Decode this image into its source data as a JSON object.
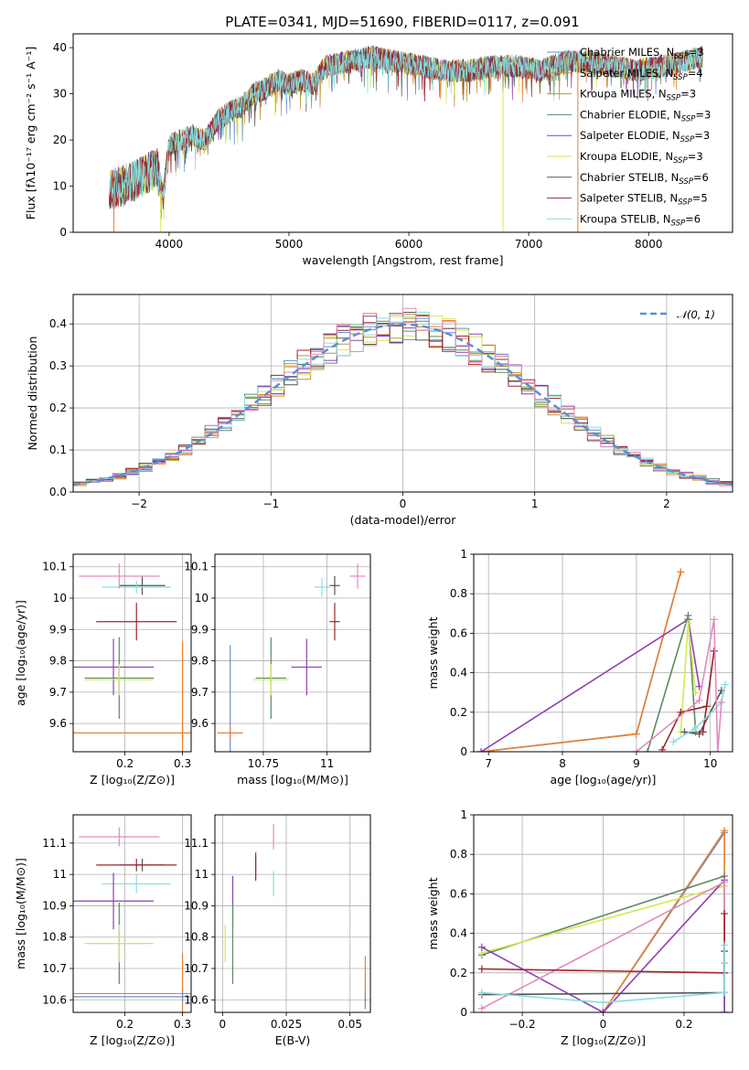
{
  "figure": {
    "title": "PLATE=0341, MJD=51690, FIBERID=0117, z=0.091"
  },
  "colors": [
    "#6a8fce",
    "#e8812f",
    "#c09339",
    "#5f8a65",
    "#8e3fb5",
    "#d5e850",
    "#555555",
    "#a0242c",
    "#88dde0",
    "#e28bbf",
    "#b8b8b8"
  ],
  "chart_data": [
    {
      "id": "spectrum",
      "type": "line",
      "title": "PLATE=0341, MJD=51690, FIBERID=0117, z=0.091",
      "xlabel": "wavelength [Angstrom, rest frame]",
      "ylabel": "Flux [fλ10⁻¹⁷ erg cm⁻² s⁻¹ A⁻¹]",
      "xlim": [
        3200,
        8700
      ],
      "ylim": [
        0,
        43
      ],
      "xticks": [
        4000,
        5000,
        6000,
        7000,
        8000
      ],
      "yticks": [
        0,
        10,
        20,
        30,
        40
      ],
      "spectrum_range": [
        3500,
        8450
      ],
      "legend_location": "right",
      "legend": [
        {
          "model": "Chabrier MILES",
          "n": "3"
        },
        {
          "model": "Salpeter MILES",
          "n": "4"
        },
        {
          "model": "Kroupa MILES",
          "n": "3"
        },
        {
          "model": "Chabrier ELODIE",
          "n": "3"
        },
        {
          "model": "Salpeter ELODIE",
          "n": "3"
        },
        {
          "model": "Kroupa ELODIE",
          "n": "3"
        },
        {
          "model": "Chabrier STELIB",
          "n": "6"
        },
        {
          "model": "Salpeter STELIB",
          "n": "5"
        },
        {
          "model": "Kroupa STELIB",
          "n": "6"
        }
      ],
      "legend_colors": [
        "#6a8fce",
        "#e8812f",
        "#c09339",
        "#5f8a65",
        "#8e3fb5",
        "#d5e850",
        "#555555",
        "#a0242c",
        "#88dde0"
      ],
      "envelope": {
        "x": [
          3500,
          3700,
          3900,
          3950,
          4000,
          4200,
          4300,
          4400,
          4500,
          4600,
          4700,
          4800,
          4900,
          5000,
          5100,
          5200,
          5300,
          5500,
          5700,
          5900,
          6100,
          6300,
          6500,
          6700,
          6900,
          7100,
          7300,
          7500,
          7700,
          7900,
          8100,
          8300,
          8450
        ],
        "y": [
          9,
          11,
          14,
          8,
          19,
          21,
          20,
          24,
          26,
          27,
          30,
          31,
          33,
          32,
          33,
          32,
          36,
          37,
          38,
          37,
          36,
          35,
          35,
          36,
          36,
          35,
          37,
          37,
          36,
          35,
          36,
          37,
          38
        ]
      }
    },
    {
      "id": "residuals",
      "type": "line",
      "xlabel": "(data-model)/error",
      "ylabel": "Normed distribution",
      "xlim": [
        -2.5,
        2.5
      ],
      "ylim": [
        0,
        0.47
      ],
      "xticks": [
        -2,
        -1,
        0,
        1,
        2
      ],
      "yticks": [
        0.0,
        0.1,
        0.2,
        0.3,
        0.4
      ],
      "legend": [
        {
          "label": "𝒩(0, 1)",
          "color": "#5b8fd6"
        }
      ],
      "legend_location": "top-right"
    },
    {
      "id": "Z-age",
      "type": "scatter",
      "xlabel": "Z [log₁₀(Z/Z⊙)]",
      "ylabel": "age  [log₁₀(age/yr)]",
      "xlim": [
        0.11,
        0.315
      ],
      "ylim": [
        9.51,
        10.14
      ],
      "xticks": [
        0.2,
        0.3
      ],
      "yticks": [
        9.6,
        9.7,
        9.8,
        9.9,
        10.0,
        10.1
      ],
      "points": [
        {
          "x": 0.23,
          "y": 10.04,
          "xerr": 0.04,
          "yerr": 0.03,
          "c": 6
        },
        {
          "x": 0.22,
          "y": 10.035,
          "xerr": 0.06,
          "yerr": 0.02,
          "c": 8
        },
        {
          "x": 0.19,
          "y": 10.07,
          "xerr": 0.07,
          "yerr": 0.04,
          "c": 9
        },
        {
          "x": 0.22,
          "y": 9.925,
          "xerr": 0.07,
          "yerr": 0.06,
          "c": 7
        },
        {
          "x": 0.18,
          "y": 9.78,
          "xerr": 0.07,
          "yerr": 0.09,
          "c": 4
        },
        {
          "x": 0.19,
          "y": 9.745,
          "xerr": 0.06,
          "yerr": 0.13,
          "c": 3
        },
        {
          "x": 0.19,
          "y": 9.74,
          "xerr": 0.06,
          "yerr": 0.05,
          "c": 5
        },
        {
          "x": 0.3,
          "y": 9.57,
          "xerr": 0.19,
          "yerr": 0.02,
          "c": 0
        },
        {
          "x": 0.3,
          "y": 9.57,
          "xerr": 0.19,
          "yerr": 0.29,
          "c": 1
        }
      ]
    },
    {
      "id": "mass-age",
      "type": "scatter",
      "xlabel": "mass [log₁₀(M/M⊙)]",
      "ylabel": "",
      "xlim": [
        10.56,
        11.17
      ],
      "ylim": [
        9.51,
        10.14
      ],
      "xticks": [
        10.75,
        11.0
      ],
      "yticks": [
        9.6,
        9.7,
        9.8,
        9.9,
        10.0,
        10.1
      ],
      "points": [
        {
          "x": 11.03,
          "y": 10.04,
          "xerr": 0.02,
          "yerr": 0.03,
          "c": 6
        },
        {
          "x": 10.98,
          "y": 10.035,
          "xerr": 0.03,
          "yerr": 0.03,
          "c": 8
        },
        {
          "x": 11.12,
          "y": 10.07,
          "xerr": 0.03,
          "yerr": 0.04,
          "c": 9
        },
        {
          "x": 11.03,
          "y": 9.925,
          "xerr": 0.02,
          "yerr": 0.06,
          "c": 7
        },
        {
          "x": 10.92,
          "y": 9.78,
          "xerr": 0.06,
          "yerr": 0.09,
          "c": 4
        },
        {
          "x": 10.78,
          "y": 9.745,
          "xerr": 0.06,
          "yerr": 0.13,
          "c": 3
        },
        {
          "x": 10.78,
          "y": 9.74,
          "xerr": 0.07,
          "yerr": 0.05,
          "c": 5
        },
        {
          "x": 10.62,
          "y": 9.57,
          "xerr": 0.05,
          "yerr": 0.28,
          "c": 0
        },
        {
          "x": 10.62,
          "y": 9.57,
          "xerr": 0.05,
          "yerr": 0.02,
          "c": 1
        }
      ]
    },
    {
      "id": "age-weight",
      "type": "line",
      "xlabel": "age  [log₁₀(age/yr)]",
      "ylabel": "mass weight",
      "xlim": [
        6.8,
        10.3
      ],
      "ylim": [
        0,
        1.0
      ],
      "xticks": [
        7,
        8,
        9,
        10
      ],
      "yticks": [
        0.0,
        0.2,
        0.4,
        0.6,
        0.8,
        1.0
      ],
      "series": [
        {
          "c": 0,
          "x": [
            6.9,
            9.0,
            9.6
          ],
          "y": [
            0.0,
            0.09,
            0.91
          ]
        },
        {
          "c": 1,
          "x": [
            6.9,
            9.0,
            9.6
          ],
          "y": [
            0.0,
            0.09,
            0.91
          ]
        },
        {
          "c": 4,
          "x": [
            6.9,
            9.7,
            9.85
          ],
          "y": [
            0.0,
            0.67,
            0.33
          ]
        },
        {
          "c": 3,
          "x": [
            9.15,
            9.7,
            9.8
          ],
          "y": [
            0.0,
            0.69,
            0.1
          ]
        },
        {
          "c": 5,
          "x": [
            9.6,
            9.7,
            9.8
          ],
          "y": [
            0.1,
            0.65,
            0.3
          ]
        },
        {
          "c": 6,
          "x": [
            9.65,
            9.85,
            10.15
          ],
          "y": [
            0.1,
            0.09,
            0.31
          ]
        },
        {
          "c": 7,
          "x": [
            9.35,
            9.6,
            9.95,
            10.05,
            9.9
          ],
          "y": [
            0.01,
            0.2,
            0.23,
            0.51,
            0.1
          ]
        },
        {
          "c": 8,
          "x": [
            9.5,
            9.8,
            10.15,
            10.2
          ],
          "y": [
            0.05,
            0.12,
            0.25,
            0.34
          ]
        },
        {
          "c": 9,
          "x": [
            9.0,
            9.85,
            10.05,
            10.1,
            10.15
          ],
          "y": [
            0.0,
            0.26,
            0.67,
            0.0,
            0.25
          ]
        }
      ]
    },
    {
      "id": "Z-mass",
      "type": "scatter",
      "xlabel": "Z [log₁₀(Z/Z⊙)]",
      "ylabel": "mass [log₁₀(M/M⊙)]",
      "xlim": [
        0.11,
        0.315
      ],
      "ylim": [
        10.56,
        11.19
      ],
      "xticks": [
        0.2,
        0.3
      ],
      "yticks": [
        10.6,
        10.7,
        10.8,
        10.9,
        11.0,
        11.1
      ],
      "points": [
        {
          "x": 0.23,
          "y": 11.03,
          "xerr": 0.04,
          "yerr": 0.02,
          "c": 6
        },
        {
          "x": 0.22,
          "y": 10.97,
          "xerr": 0.06,
          "yerr": 0.03,
          "c": 8
        },
        {
          "x": 0.19,
          "y": 11.12,
          "xerr": 0.07,
          "yerr": 0.03,
          "c": 9
        },
        {
          "x": 0.22,
          "y": 11.03,
          "xerr": 0.07,
          "yerr": 0.02,
          "c": 7
        },
        {
          "x": 0.18,
          "y": 10.915,
          "xerr": 0.07,
          "yerr": 0.09,
          "c": 4
        },
        {
          "x": 0.19,
          "y": 10.78,
          "xerr": 0.05,
          "yerr": 0.13,
          "c": 3
        },
        {
          "x": 0.19,
          "y": 10.78,
          "xerr": 0.06,
          "yerr": 0.06,
          "c": 5
        },
        {
          "x": 0.3,
          "y": 10.62,
          "xerr": 0.19,
          "yerr": 0.13,
          "c": 1
        },
        {
          "x": 0.3,
          "y": 10.61,
          "xerr": 0.19,
          "yerr": 0.02,
          "c": 0
        }
      ]
    },
    {
      "id": "EBV-mass",
      "type": "scatter",
      "xlabel": "E(B-V)",
      "ylabel": "",
      "xlim": [
        -0.003,
        0.058
      ],
      "ylim": [
        10.56,
        11.19
      ],
      "xticks": [
        0.0,
        0.025,
        0.05
      ],
      "yticks": [
        10.6,
        10.7,
        10.8,
        10.9,
        11.0,
        11.1
      ],
      "points": [
        {
          "x": 0.02,
          "y": 11.12,
          "yerr": 0.04,
          "c": 9
        },
        {
          "x": 0.013,
          "y": 11.03,
          "yerr": 0.04,
          "c": 6
        },
        {
          "x": 0.013,
          "y": 11.02,
          "yerr": 0.04,
          "c": 7
        },
        {
          "x": 0.02,
          "y": 10.97,
          "yerr": 0.04,
          "c": 8
        },
        {
          "x": 0.004,
          "y": 10.915,
          "yerr": 0.08,
          "c": 4
        },
        {
          "x": 0.004,
          "y": 10.78,
          "yerr": 0.13,
          "c": 3
        },
        {
          "x": 0.001,
          "y": 10.78,
          "yerr": 0.06,
          "c": 5
        },
        {
          "x": 0.056,
          "y": 10.66,
          "yerr": 0.08,
          "c": 1
        },
        {
          "x": 0.056,
          "y": 10.6,
          "yerr": 0.03,
          "c": 0
        }
      ]
    },
    {
      "id": "Z-weight",
      "type": "line",
      "xlabel": "Z [log₁₀(Z/Z⊙)]",
      "ylabel": "mass weight",
      "xlim": [
        -0.32,
        0.32
      ],
      "ylim": [
        0,
        1.0
      ],
      "xticks": [
        -0.2,
        0.0,
        0.2
      ],
      "yticks": [
        0.0,
        0.2,
        0.4,
        0.6,
        0.8,
        1.0
      ],
      "series": [
        {
          "c": 0,
          "x": [
            0.0,
            0.3,
            0.3
          ],
          "y": [
            0.0,
            0.91,
            0.0
          ]
        },
        {
          "c": 1,
          "x": [
            0.0,
            0.3,
            0.3
          ],
          "y": [
            0.0,
            0.92,
            0.0
          ]
        },
        {
          "c": 3,
          "x": [
            -0.3,
            0.3,
            0.3
          ],
          "y": [
            0.29,
            0.69,
            0.0
          ]
        },
        {
          "c": 5,
          "x": [
            -0.3,
            0.3,
            0.3
          ],
          "y": [
            0.3,
            0.64,
            0.0
          ]
        },
        {
          "c": 4,
          "x": [
            -0.3,
            0.0,
            0.3,
            0.3
          ],
          "y": [
            0.33,
            0.0,
            0.67,
            0.0
          ]
        },
        {
          "c": 9,
          "x": [
            -0.3,
            0.3,
            0.3
          ],
          "y": [
            0.02,
            0.66,
            0.25
          ]
        },
        {
          "c": 6,
          "x": [
            -0.3,
            0.3,
            0.3
          ],
          "y": [
            0.09,
            0.1,
            0.31
          ]
        },
        {
          "c": 7,
          "x": [
            -0.3,
            0.3,
            0.3
          ],
          "y": [
            0.22,
            0.2,
            0.5
          ]
        },
        {
          "c": 8,
          "x": [
            -0.3,
            0.0,
            0.3,
            0.3
          ],
          "y": [
            0.1,
            0.05,
            0.1,
            0.34
          ]
        }
      ]
    }
  ]
}
